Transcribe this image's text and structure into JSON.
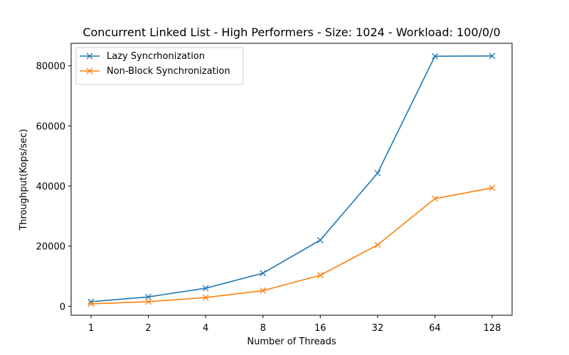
{
  "chart_data": {
    "type": "line",
    "title": "Concurrent Linked List - High Performers - Size: 1024 - Workload: 100/0/0",
    "xlabel": "Number of Threads",
    "ylabel": "Throughput(Kops/sec)",
    "categories": [
      "1",
      "2",
      "4",
      "8",
      "16",
      "32",
      "64",
      "128"
    ],
    "ylim": [
      -3000,
      87500
    ],
    "yticks": [
      0,
      20000,
      40000,
      60000,
      80000
    ],
    "grid": false,
    "legend_position": "top-left",
    "series": [
      {
        "name": "Lazy Syncrhonization",
        "color": "#1f77b4",
        "marker": "x",
        "values": [
          1500,
          3100,
          6000,
          11000,
          22000,
          44300,
          83200,
          83300
        ]
      },
      {
        "name": "Non-Block Synchronization",
        "color": "#ff7f0e",
        "marker": "x",
        "values": [
          800,
          1500,
          2900,
          5200,
          10300,
          20400,
          35800,
          39400
        ]
      }
    ]
  }
}
